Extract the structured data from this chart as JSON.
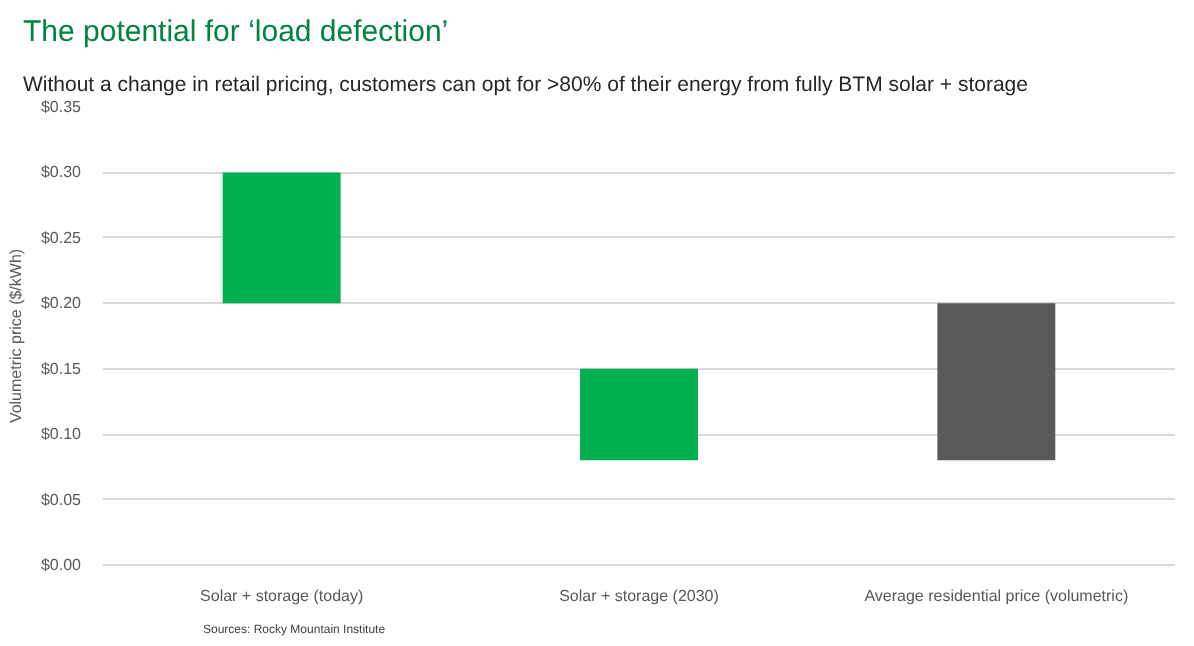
{
  "chart_data": {
    "type": "bar",
    "title": "The potential for ‘load defection’",
    "subtitle": "Without a change in retail pricing, customers can opt for >80% of their energy from fully BTM solar + storage",
    "ylabel": "Volumetric price ($/kWh)",
    "categories": [
      "Solar + storage (today)",
      "Solar + storage (2030)",
      "Average residential price (volumetric)"
    ],
    "values": [
      0.1,
      0.07,
      0.12
    ],
    "base": [
      0.2,
      0.08,
      0.08
    ],
    "colors": [
      "#00b050",
      "#00b050",
      "#595959"
    ],
    "ylim": [
      0,
      0.35
    ],
    "yticks": [
      {
        "value": 0,
        "label": "$0.00"
      },
      {
        "value": 0.05,
        "label": "$0.05"
      },
      {
        "value": 0.1,
        "label": "$0.10"
      },
      {
        "value": 0.15,
        "label": "$0.15"
      },
      {
        "value": 0.2,
        "label": "$0.20"
      },
      {
        "value": 0.25,
        "label": "$0.25"
      },
      {
        "value": 0.3,
        "label": "$0.30"
      },
      {
        "value": 0.35,
        "label": "$0.35"
      }
    ],
    "grid": "y",
    "annotations": [
      "Sources: Rocky Mountain Institute"
    ]
  }
}
